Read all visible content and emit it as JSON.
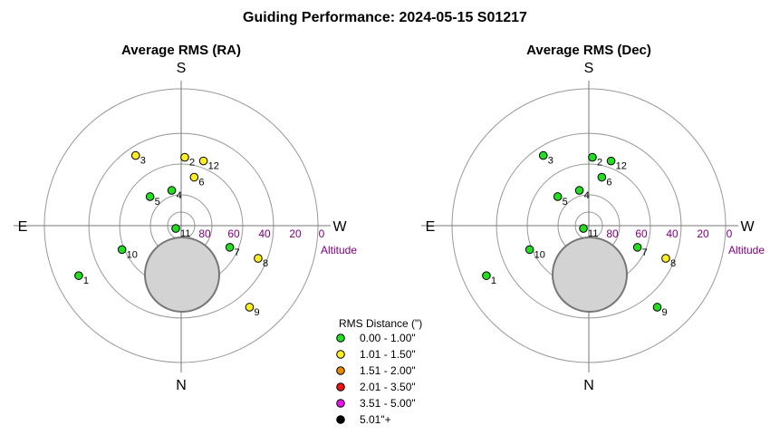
{
  "title": "Guiding Performance: 2024-05-15 S01217",
  "colors": {
    "green": "#22dd22",
    "yellow": "#ffee22",
    "orange": "#e88a00",
    "red": "#ee1111",
    "magenta": "#ee11ee",
    "black": "#000000",
    "ring": "#999999",
    "altitude": "#800080",
    "occulted": "#d3d3d3"
  },
  "chart_data": [
    {
      "type": "scatter",
      "projection": "polar-altaz",
      "title": "Average RMS (RA)",
      "compass": {
        "top": "S",
        "bottom": "N",
        "left": "E",
        "right": "W"
      },
      "altitude_label": "Altitude",
      "altitude_ticks": [
        "80",
        "60",
        "40",
        "20",
        "0"
      ],
      "points": [
        {
          "label": "1",
          "az": 296,
          "alt": 15,
          "class": "green"
        },
        {
          "label": "2",
          "az": 177,
          "alt": 45,
          "class": "yellow"
        },
        {
          "label": "3",
          "az": 213,
          "alt": 35,
          "class": "yellow"
        },
        {
          "label": "4",
          "az": 195,
          "alt": 66,
          "class": "green"
        },
        {
          "label": "5",
          "az": 227,
          "alt": 62,
          "class": "green"
        },
        {
          "label": "6",
          "az": 165,
          "alt": 57,
          "class": "yellow"
        },
        {
          "label": "7",
          "az": 66,
          "alt": 55,
          "class": "green"
        },
        {
          "label": "8",
          "az": 67,
          "alt": 35,
          "class": "yellow"
        },
        {
          "label": "9",
          "az": 40,
          "alt": 20,
          "class": "yellow"
        },
        {
          "label": "10",
          "az": 292,
          "alt": 48,
          "class": "green"
        },
        {
          "label": "11",
          "az": 297,
          "alt": 86,
          "class": "green"
        },
        {
          "label": "12",
          "az": 161,
          "alt": 45,
          "class": "yellow"
        }
      ]
    },
    {
      "type": "scatter",
      "projection": "polar-altaz",
      "title": "Average RMS (Dec)",
      "compass": {
        "top": "S",
        "bottom": "N",
        "left": "E",
        "right": "W"
      },
      "altitude_label": "Altitude",
      "altitude_ticks": [
        "80",
        "60",
        "40",
        "20",
        "0"
      ],
      "points": [
        {
          "label": "1",
          "az": 296,
          "alt": 15,
          "class": "green"
        },
        {
          "label": "2",
          "az": 177,
          "alt": 45,
          "class": "green"
        },
        {
          "label": "3",
          "az": 213,
          "alt": 35,
          "class": "green"
        },
        {
          "label": "4",
          "az": 195,
          "alt": 66,
          "class": "green"
        },
        {
          "label": "5",
          "az": 227,
          "alt": 62,
          "class": "green"
        },
        {
          "label": "6",
          "az": 165,
          "alt": 57,
          "class": "green"
        },
        {
          "label": "7",
          "az": 66,
          "alt": 55,
          "class": "green"
        },
        {
          "label": "8",
          "az": 67,
          "alt": 35,
          "class": "yellow"
        },
        {
          "label": "9",
          "az": 40,
          "alt": 20,
          "class": "green"
        },
        {
          "label": "10",
          "az": 292,
          "alt": 48,
          "class": "green"
        },
        {
          "label": "11",
          "az": 297,
          "alt": 86,
          "class": "green"
        },
        {
          "label": "12",
          "az": 161,
          "alt": 45,
          "class": "green"
        }
      ]
    }
  ],
  "legend": {
    "title": "RMS Distance (\")",
    "items": [
      {
        "class": "green",
        "label": "0.00 - 1.00\""
      },
      {
        "class": "yellow",
        "label": "1.01 - 1.50\""
      },
      {
        "class": "orange",
        "label": "1.51 - 2.00\""
      },
      {
        "class": "red",
        "label": "2.01 - 3.50\""
      },
      {
        "class": "magenta",
        "label": "3.51 - 5.00\""
      },
      {
        "class": "black",
        "label": "5.01\"+"
      }
    ]
  }
}
